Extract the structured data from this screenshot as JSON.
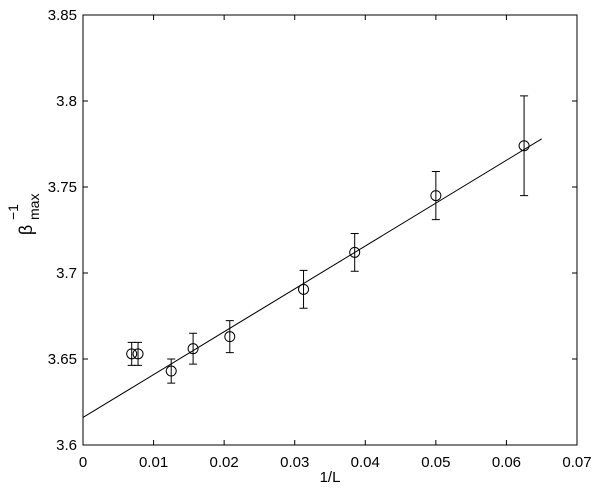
{
  "chart_data": {
    "type": "scatter",
    "x_label": "1/L",
    "y_label": {
      "symbol": "β",
      "superscript": "−1",
      "subscript": "max"
    },
    "xlim": [
      0,
      0.07
    ],
    "xticks": [
      0,
      0.01,
      0.02,
      0.03,
      0.04,
      0.05,
      0.06,
      0.07
    ],
    "ylim": [
      3.6,
      3.85
    ],
    "yticks": [
      3.6,
      3.65,
      3.7,
      3.75,
      3.8,
      3.85
    ],
    "grid": false,
    "series": [
      {
        "style": "markers",
        "color": "#000000",
        "x": [
          0.0069,
          0.0078,
          0.0125,
          0.0156,
          0.0208,
          0.03125,
          0.0385,
          0.05,
          0.0625
        ],
        "values": [
          3.653,
          3.653,
          3.643,
          3.656,
          3.663,
          3.6905,
          3.712,
          3.745,
          3.774
        ],
        "errors": [
          0.0067,
          0.0067,
          0.007,
          0.009,
          0.0093,
          0.011,
          0.011,
          0.014,
          0.029
        ]
      },
      {
        "style": "line",
        "color": "#000000",
        "x": [
          0,
          0.065
        ],
        "values": [
          3.616,
          3.778
        ]
      }
    ]
  }
}
